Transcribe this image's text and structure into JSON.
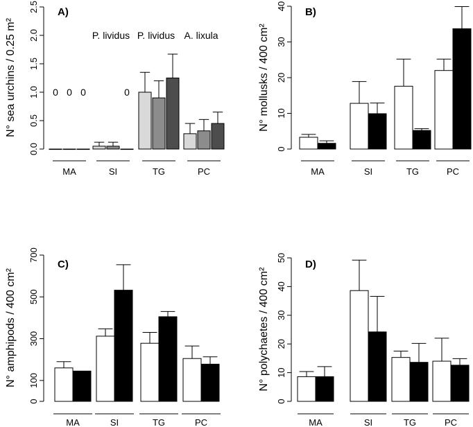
{
  "chart_data": [
    {
      "type": "bar",
      "panel_label": "A)",
      "ylabel": "N° sea urchins / 0.25 m²",
      "ylim": [
        0,
        2.5
      ],
      "yticks": [
        "0.0",
        "0.5",
        "1.0",
        "1.5",
        "2.0",
        "2.5"
      ],
      "categories": [
        "MA",
        "SI",
        "TG",
        "PC"
      ],
      "series": [
        {
          "values": [
            0,
            0.05,
            1.0,
            0.27
          ],
          "errors": [
            0,
            0.07,
            0.35,
            0.18
          ],
          "color": "#d9d9d9"
        },
        {
          "values": [
            0,
            0.05,
            0.9,
            0.32
          ],
          "errors": [
            0,
            0.07,
            0.3,
            0.2
          ],
          "color": "#8c8c8c"
        },
        {
          "values": [
            0,
            0.0,
            1.25,
            0.45
          ],
          "errors": [
            0,
            0,
            0.42,
            0.2
          ],
          "color": "#4d4d4d"
        }
      ],
      "zero_marks": [
        {
          "group": 0,
          "bar": 0,
          "text": "0"
        },
        {
          "group": 0,
          "bar": 1,
          "text": "0"
        },
        {
          "group": 0,
          "bar": 2,
          "text": "0"
        },
        {
          "group": 1,
          "bar": 2,
          "text": "0"
        }
      ],
      "annotations": [
        "P. lividus",
        "P. lividus",
        "A. lixula"
      ]
    },
    {
      "type": "bar",
      "panel_label": "B)",
      "ylabel": "N° mollusks / 400 cm²",
      "ylim": [
        0,
        40
      ],
      "yticks": [
        "0",
        "10",
        "20",
        "30",
        "40"
      ],
      "categories": [
        "MA",
        "SI",
        "TG",
        "PC"
      ],
      "series": [
        {
          "values": [
            3.3,
            12.8,
            17.6,
            22.0
          ],
          "errors": [
            0.8,
            6.1,
            7.6,
            3.2
          ],
          "color": "#ffffff"
        },
        {
          "values": [
            1.6,
            9.9,
            5.2,
            33.7
          ],
          "errors": [
            0.7,
            3.0,
            0.5,
            6.2
          ],
          "color": "#000000"
        }
      ]
    },
    {
      "type": "bar",
      "panel_label": "C)",
      "ylabel": "N° amphipods / 400 cm²",
      "ylim": [
        0,
        700
      ],
      "yticks": [
        "0",
        "100",
        "300",
        "500",
        "700"
      ],
      "categories": [
        "MA",
        "SI",
        "TG",
        "PC"
      ],
      "series": [
        {
          "values": [
            160,
            312,
            278,
            205
          ],
          "errors": [
            30,
            35,
            52,
            60
          ],
          "color": "#ffffff"
        },
        {
          "values": [
            145,
            532,
            405,
            178
          ],
          "errors": [
            0,
            122,
            25,
            35
          ],
          "color": "#000000"
        }
      ]
    },
    {
      "type": "bar",
      "panel_label": "D)",
      "ylabel": "N° polychaetes / 400 cm²",
      "ylim": [
        0,
        50
      ],
      "yticks": [
        "0",
        "10",
        "20",
        "30",
        "40",
        "50"
      ],
      "categories": [
        "MA",
        "SI",
        "TG",
        "PC"
      ],
      "series": [
        {
          "values": [
            8.6,
            38.6,
            15.3,
            14.0
          ],
          "errors": [
            1.8,
            10.6,
            2.2,
            8.0
          ],
          "color": "#ffffff"
        },
        {
          "values": [
            8.6,
            24.2,
            13.6,
            12.6
          ],
          "errors": [
            3.5,
            12.4,
            6.6,
            2.3
          ],
          "color": "#000000"
        }
      ]
    }
  ]
}
